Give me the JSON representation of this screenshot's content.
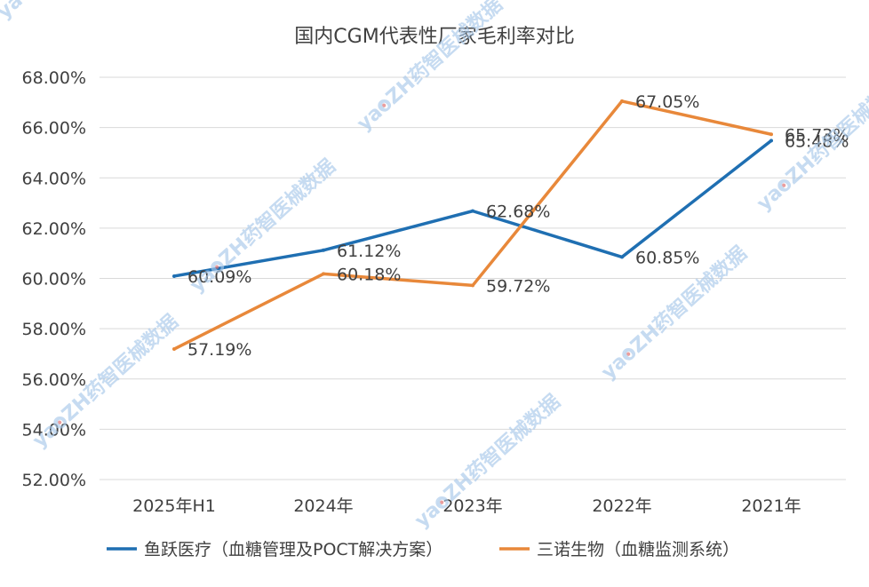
{
  "chart_data": {
    "type": "line",
    "title": "国内CGM代表性厂家毛利率对比",
    "categories": [
      "2025年H1",
      "2024年",
      "2023年",
      "2022年",
      "2021年"
    ],
    "ylim": [
      52,
      68
    ],
    "y_ticks": [
      52,
      54,
      56,
      58,
      60,
      62,
      64,
      66,
      68
    ],
    "y_tick_labels": [
      "52.00%",
      "54.00%",
      "56.00%",
      "58.00%",
      "60.00%",
      "62.00%",
      "64.00%",
      "66.00%",
      "68.00%"
    ],
    "grid": true,
    "legend_position": "bottom",
    "series": [
      {
        "name": "鱼跃医疗（血糖管理及POCT解决方案）",
        "color": "#1f6fb2",
        "values": [
          60.09,
          61.12,
          62.68,
          60.85,
          65.48
        ],
        "labels": [
          "60.09%",
          "61.12%",
          "62.68%",
          "60.85%",
          "65.48%"
        ]
      },
      {
        "name": "三诺生物（血糖监测系统）",
        "color": "#e8883a",
        "values": [
          57.19,
          60.18,
          59.72,
          67.05,
          65.73
        ],
        "labels": [
          "57.19%",
          "60.18%",
          "59.72%",
          "67.05%",
          "65.73%"
        ]
      }
    ]
  },
  "watermark": {
    "text": "yaoZH药智医械数据",
    "color": "#a9c9ea"
  }
}
